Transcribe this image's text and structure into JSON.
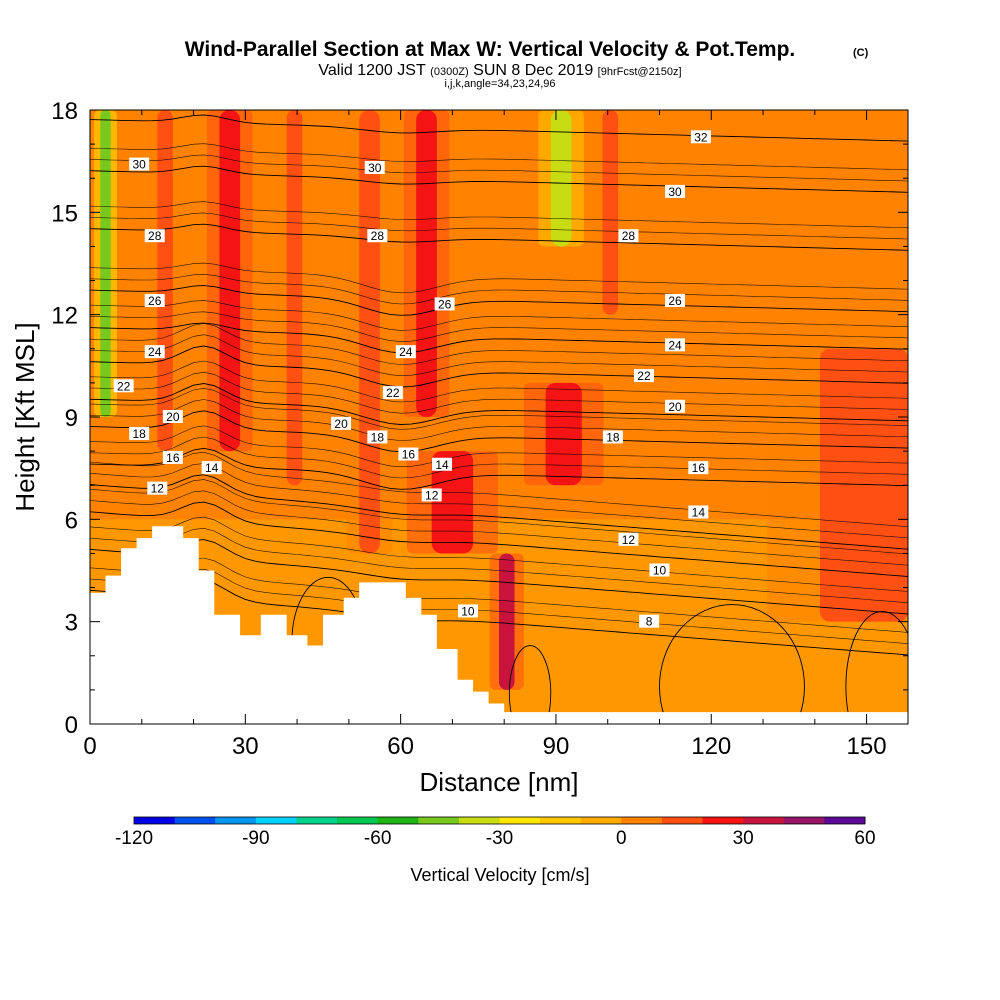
{
  "chart_data": {
    "type": "heatmap",
    "title": "Wind-Parallel Section at Max W: Vertical Velocity & Pot.Temp.",
    "title_mark": "(C)",
    "subtitle_parts": [
      "Valid 1200 JST",
      "(0300Z)",
      "SUN 8 Dec 2019",
      "[9hrFcst@2150z]"
    ],
    "subtitle_line2": "i,j,k,angle=34,23,24,96",
    "xlabel": "Distance [nm]",
    "ylabel": "Height [Kft MSL]",
    "xlim": [
      0,
      158
    ],
    "ylim": [
      0,
      18
    ],
    "x_ticks": [
      0,
      30,
      60,
      90,
      120,
      150
    ],
    "y_ticks": [
      0,
      3,
      6,
      9,
      12,
      15,
      18
    ],
    "colorbar": {
      "label": "Vertical Velocity [cm/s]",
      "range": [
        -120,
        60
      ],
      "tick_values": [
        -120,
        -90,
        -60,
        -30,
        0,
        30,
        60
      ],
      "tick_labels": [
        "-120",
        "-90",
        "-60",
        "-30",
        "0",
        "30",
        "60"
      ],
      "colors": [
        "#0000e6",
        "#0050f0",
        "#0096f0",
        "#00d2ff",
        "#00d28c",
        "#00c850",
        "#1eb414",
        "#78c81e",
        "#c8dc14",
        "#ffe600",
        "#ffc800",
        "#ffaa00",
        "#ff8200",
        "#ff5014",
        "#f51414",
        "#c8143c",
        "#961464",
        "#5a0a96"
      ]
    },
    "velocity_columns": [
      {
        "x": [
          2,
          4
        ],
        "y": [
          9,
          18
        ],
        "value": -45
      },
      {
        "x": [
          13,
          16
        ],
        "y": [
          8,
          18
        ],
        "value": 10
      },
      {
        "x": [
          25,
          29
        ],
        "y": [
          8,
          18
        ],
        "value": 25
      },
      {
        "x": [
          38,
          41
        ],
        "y": [
          7,
          18
        ],
        "value": 15
      },
      {
        "x": [
          52,
          56
        ],
        "y": [
          5,
          18
        ],
        "value": 15
      },
      {
        "x": [
          63,
          67
        ],
        "y": [
          9,
          18
        ],
        "value": 20
      },
      {
        "x": [
          66,
          74
        ],
        "y": [
          5,
          8
        ],
        "value": 20
      },
      {
        "x": [
          79,
          82
        ],
        "y": [
          1,
          5
        ],
        "value": 35
      },
      {
        "x": [
          88,
          95
        ],
        "y": [
          7,
          10
        ],
        "value": 20
      },
      {
        "x": [
          89,
          93
        ],
        "y": [
          14,
          18
        ],
        "value": -40
      },
      {
        "x": [
          99,
          102
        ],
        "y": [
          12,
          18
        ],
        "value": 15
      },
      {
        "x": [
          141,
          158
        ],
        "y": [
          3,
          11
        ],
        "value": 10
      }
    ],
    "theta_contours": [
      {
        "level": 8,
        "base_height": 3.2,
        "label": "8"
      },
      {
        "level": 10,
        "base_height": 4.4,
        "label": "10"
      },
      {
        "level": 12,
        "base_height": 5.5,
        "label": "12"
      },
      {
        "level": 14,
        "base_height": 6.3,
        "label": "14"
      },
      {
        "level": 16,
        "base_height": 7.3,
        "label": "16"
      },
      {
        "level": 18,
        "base_height": 8.4,
        "label": "18"
      },
      {
        "level": 20,
        "base_height": 9.2,
        "label": "20"
      },
      {
        "level": 22,
        "base_height": 10.3,
        "label": "22"
      },
      {
        "level": 24,
        "base_height": 11.3,
        "label": "24"
      },
      {
        "level": 26,
        "base_height": 12.4,
        "label": "26"
      },
      {
        "level": 28,
        "base_height": 14.2,
        "label": "28"
      },
      {
        "level": 30,
        "base_height": 15.9,
        "label": "30"
      },
      {
        "level": 32,
        "base_height": 17.4,
        "label": "32"
      }
    ],
    "contour_labels": [
      {
        "x": 9.5,
        "y": 16.4,
        "text": "30"
      },
      {
        "x": 55,
        "y": 16.3,
        "text": "30"
      },
      {
        "x": 113,
        "y": 15.6,
        "text": "30"
      },
      {
        "x": 118,
        "y": 17.2,
        "text": "32"
      },
      {
        "x": 12.5,
        "y": 14.3,
        "text": "28"
      },
      {
        "x": 55.5,
        "y": 14.3,
        "text": "28"
      },
      {
        "x": 104,
        "y": 14.3,
        "text": "28"
      },
      {
        "x": 12.5,
        "y": 12.4,
        "text": "26"
      },
      {
        "x": 68.5,
        "y": 12.3,
        "text": "26"
      },
      {
        "x": 113,
        "y": 12.4,
        "text": "26"
      },
      {
        "x": 12.5,
        "y": 10.9,
        "text": "24"
      },
      {
        "x": 61,
        "y": 10.9,
        "text": "24"
      },
      {
        "x": 113,
        "y": 11.1,
        "text": "24"
      },
      {
        "x": 6.5,
        "y": 9.9,
        "text": "22"
      },
      {
        "x": 58.5,
        "y": 9.7,
        "text": "22"
      },
      {
        "x": 107,
        "y": 10.2,
        "text": "22"
      },
      {
        "x": 16,
        "y": 9.0,
        "text": "20"
      },
      {
        "x": 48.5,
        "y": 8.8,
        "text": "20"
      },
      {
        "x": 113,
        "y": 9.3,
        "text": "20"
      },
      {
        "x": 9.5,
        "y": 8.5,
        "text": "18"
      },
      {
        "x": 55.5,
        "y": 8.4,
        "text": "18"
      },
      {
        "x": 101,
        "y": 8.4,
        "text": "18"
      },
      {
        "x": 16,
        "y": 7.8,
        "text": "16"
      },
      {
        "x": 61.5,
        "y": 7.9,
        "text": "16"
      },
      {
        "x": 117.5,
        "y": 7.5,
        "text": "16"
      },
      {
        "x": 23.5,
        "y": 7.5,
        "text": "14"
      },
      {
        "x": 68,
        "y": 7.6,
        "text": "14"
      },
      {
        "x": 117.5,
        "y": 6.2,
        "text": "14"
      },
      {
        "x": 13,
        "y": 6.9,
        "text": "12"
      },
      {
        "x": 66,
        "y": 6.7,
        "text": "12"
      },
      {
        "x": 104,
        "y": 5.4,
        "text": "12"
      },
      {
        "x": 110,
        "y": 4.5,
        "text": "10"
      },
      {
        "x": 73,
        "y": 3.3,
        "text": "10"
      },
      {
        "x": 108,
        "y": 3.0,
        "text": "8"
      }
    ],
    "terrain": [
      [
        0,
        3.85
      ],
      [
        3,
        3.85
      ],
      [
        3,
        4.35
      ],
      [
        6,
        4.35
      ],
      [
        6,
        5.15
      ],
      [
        9,
        5.15
      ],
      [
        9,
        5.45
      ],
      [
        12,
        5.45
      ],
      [
        12,
        5.8
      ],
      [
        18,
        5.8
      ],
      [
        18,
        5.45
      ],
      [
        21,
        5.45
      ],
      [
        21,
        4.5
      ],
      [
        24,
        4.5
      ],
      [
        24,
        3.2
      ],
      [
        29,
        3.2
      ],
      [
        29,
        2.6
      ],
      [
        33,
        2.6
      ],
      [
        33,
        3.2
      ],
      [
        38,
        3.2
      ],
      [
        38,
        2.6
      ],
      [
        42,
        2.6
      ],
      [
        42,
        2.3
      ],
      [
        45,
        2.3
      ],
      [
        45,
        3.2
      ],
      [
        49,
        3.2
      ],
      [
        49,
        3.7
      ],
      [
        52,
        3.7
      ],
      [
        52,
        4.15
      ],
      [
        61,
        4.15
      ],
      [
        61,
        3.7
      ],
      [
        64,
        3.7
      ],
      [
        64,
        3.2
      ],
      [
        67,
        3.2
      ],
      [
        67,
        2.2
      ],
      [
        71,
        2.2
      ],
      [
        71,
        1.3
      ],
      [
        74,
        1.3
      ],
      [
        74,
        0.95
      ],
      [
        77,
        0.95
      ],
      [
        77,
        0.6
      ],
      [
        80,
        0.6
      ],
      [
        80,
        0.35
      ],
      [
        87,
        0.35
      ],
      [
        87,
        0.35
      ],
      [
        158,
        0.35
      ]
    ]
  }
}
